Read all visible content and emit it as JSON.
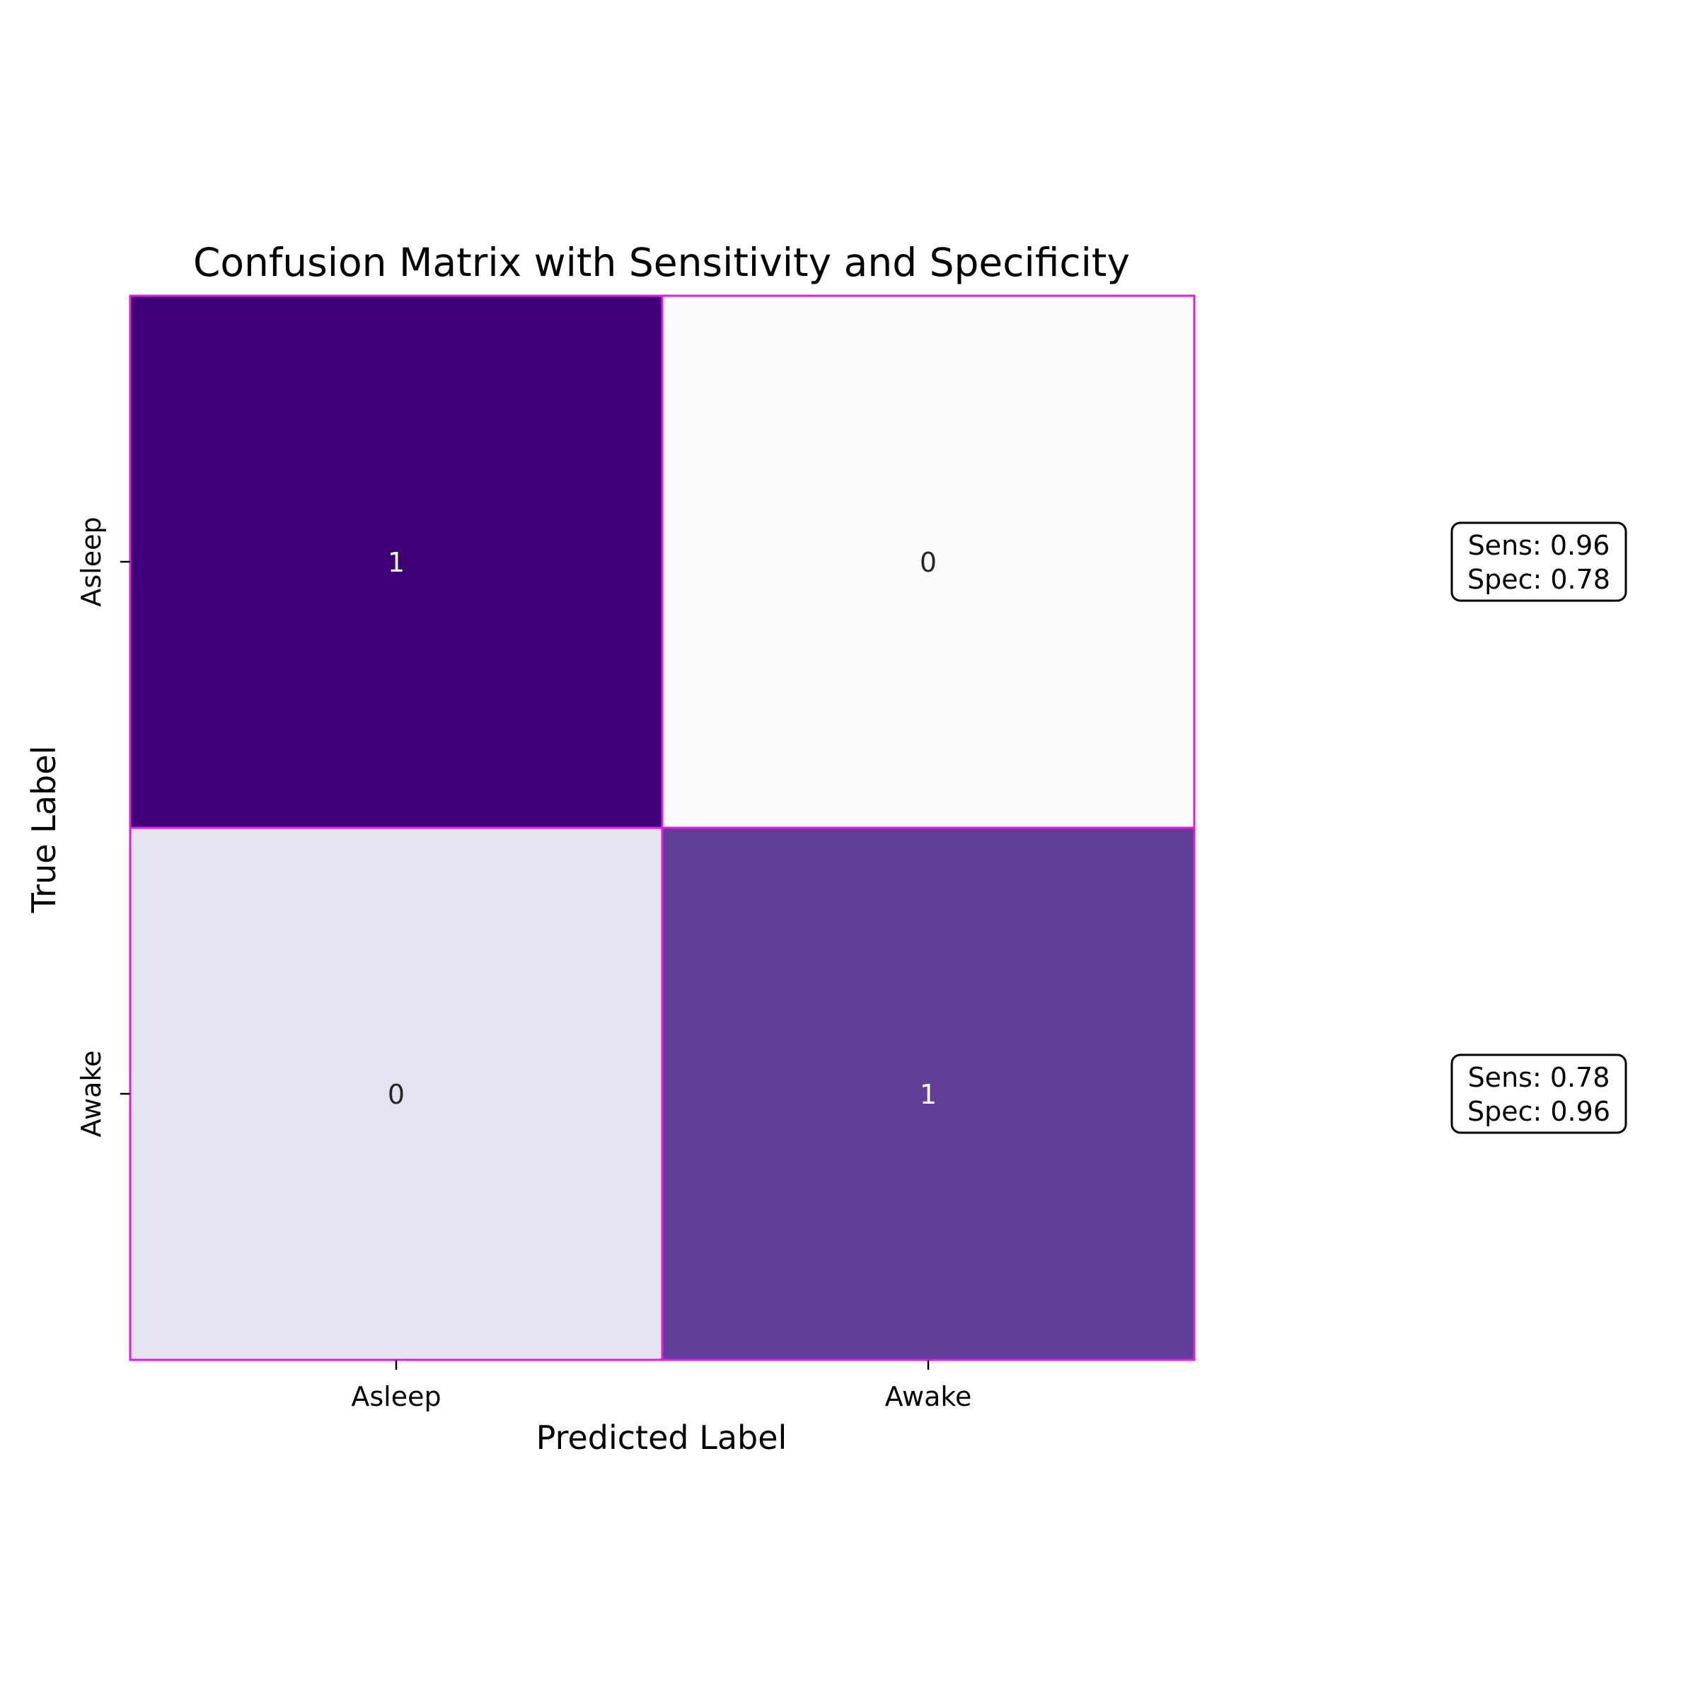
{
  "chart_data": {
    "type": "heatmap",
    "title": "Confusion Matrix with Sensitivity and Specificity",
    "xlabel": "Predicted Label",
    "ylabel": "True Label",
    "x_categories": [
      "Asleep",
      "Awake"
    ],
    "y_categories": [
      "Asleep",
      "Awake"
    ],
    "values": [
      [
        0.96,
        0.04
      ],
      [
        0.22,
        0.78
      ]
    ],
    "cell_labels": [
      [
        "1",
        "0"
      ],
      [
        "0",
        "1"
      ]
    ],
    "colormap": "Purples",
    "cell_border_color": "#e619e6",
    "colors": {
      "cells": [
        [
          "#3f0077",
          "#fbfafd"
        ],
        [
          "#e4e4f0",
          "#613f99"
        ]
      ],
      "cell_text": [
        [
          "#ffffff",
          "#262626"
        ],
        [
          "#262626",
          "#ffffff"
        ]
      ]
    },
    "metrics": [
      {
        "row": "Asleep",
        "sens_text": "Sens: 0.96",
        "spec_text": "Spec: 0.78"
      },
      {
        "row": "Awake",
        "sens_text": "Sens: 0.78",
        "spec_text": "Spec: 0.96"
      }
    ]
  }
}
